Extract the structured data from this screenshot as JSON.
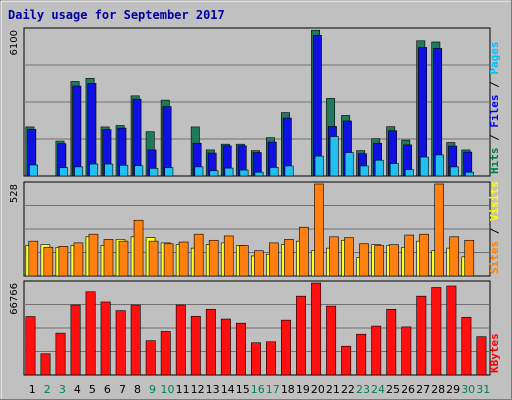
{
  "chart_data": {
    "title": "Daily usage for September 2017",
    "days": [
      "1",
      "2",
      "3",
      "4",
      "5",
      "6",
      "7",
      "8",
      "9",
      "10",
      "11",
      "12",
      "13",
      "14",
      "15",
      "16",
      "17",
      "18",
      "19",
      "20",
      "21",
      "22",
      "23",
      "24",
      "25",
      "26",
      "27",
      "28",
      "29",
      "30",
      "31"
    ],
    "weekend_days": [
      2,
      3,
      9,
      10,
      16,
      17,
      23,
      24,
      30,
      31
    ],
    "panels": [
      {
        "type": "bar",
        "max_label": "6100",
        "ymax": 6100,
        "legend": [
          {
            "text": "Hits",
            "color": "#008040"
          },
          {
            "text": " / ",
            "color": "#000000"
          },
          {
            "text": "Files",
            "color": "#0000ff"
          },
          {
            "text": " / ",
            "color": "#000000"
          },
          {
            "text": "Pages",
            "color": "#00c0ff"
          }
        ],
        "series": [
          {
            "name": "Hits",
            "color": "#1e7a5a",
            "values": [
              2050,
              0,
              1460,
              3950,
              4080,
              2050,
              2110,
              3350,
              1850,
              3170,
              0,
              2050,
              1090,
              1330,
              1330,
              1060,
              1600,
              2650,
              0,
              6090,
              3240,
              2530,
              1060,
              1560,
              2060,
              1500,
              5650,
              5600,
              1400,
              1090,
              0
            ]
          },
          {
            "name": "Files",
            "color": "#1010e0",
            "values": [
              1950,
              0,
              1350,
              3760,
              3870,
              1940,
              2000,
              3210,
              1090,
              2900,
              0,
              1370,
              960,
              1260,
              1260,
              980,
              1420,
              2420,
              0,
              5880,
              2070,
              2300,
              930,
              1370,
              1890,
              1300,
              5370,
              5330,
              1250,
              1000,
              0
            ]
          },
          {
            "name": "Pages",
            "color": "#20c0f0",
            "values": [
              460,
              0,
              350,
              380,
              500,
              500,
              450,
              430,
              320,
              350,
              0,
              380,
              220,
              330,
              250,
              160,
              360,
              420,
              0,
              830,
              1650,
              980,
              420,
              660,
              520,
              270,
              790,
              880,
              380,
              160,
              0
            ]
          }
        ]
      },
      {
        "type": "bar",
        "max_label": "528",
        "ymax": 528,
        "legend": [
          {
            "text": "Sites",
            "color": "#ff8000"
          },
          {
            "text": " / ",
            "color": "#000000"
          },
          {
            "text": "Visits",
            "color": "#ffff00"
          }
        ],
        "series": [
          {
            "name": "Visits",
            "color": "#ffff20",
            "values": [
              175,
              180,
              165,
              175,
              225,
              175,
              210,
              225,
              220,
              190,
              180,
              160,
              180,
              190,
              175,
              115,
              125,
              180,
              200,
              145,
              160,
              205,
              105,
              180,
              175,
              165,
              200,
              145,
              160,
              110,
              0
            ]
          },
          {
            "name": "Sites",
            "color": "#ff8010",
            "values": [
              200,
              165,
              170,
              190,
              240,
              210,
              200,
              320,
              200,
              185,
              195,
              240,
              205,
              230,
              175,
              145,
              190,
              210,
              280,
              528,
              225,
              220,
              185,
              175,
              180,
              235,
              240,
              528,
              225,
              205,
              0
            ]
          }
        ]
      },
      {
        "type": "bar",
        "max_label": "66766",
        "ymax": 66766,
        "legend": [
          {
            "text": "KBytes",
            "color": "#ff0000"
          }
        ],
        "series": [
          {
            "name": "KBytes",
            "color": "#ff1010",
            "values": [
              42400,
              15400,
              30400,
              50800,
              60400,
              53000,
              46700,
              50800,
              24900,
              31600,
              50800,
              42600,
              47700,
              40600,
              37600,
              23400,
              24100,
              39800,
              57200,
              66766,
              50000,
              20900,
              29600,
              35500,
              47700,
              34900,
              57200,
              63500,
              64600,
              41900,
              27800
            ]
          }
        ]
      }
    ]
  }
}
